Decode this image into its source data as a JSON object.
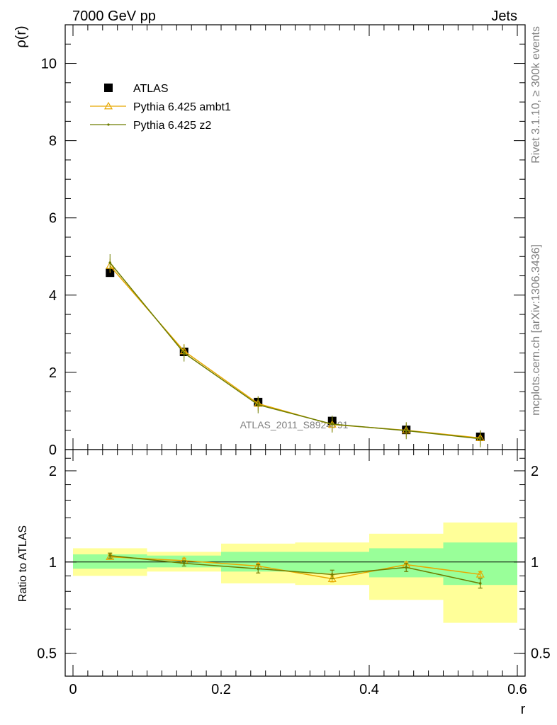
{
  "header": {
    "left": "7000 GeV pp",
    "right": "Jets"
  },
  "side": {
    "rivet": "Rivet 3.1.10, ≥ 300k events",
    "mcplots": "mcplots.cern.ch [arXiv:1306.3436]"
  },
  "watermark": "ATLAS_2011_S8924791",
  "colors": {
    "ambt1": "#e8a800",
    "z2": "#6e7d00",
    "band_inner": "#99ff99",
    "band_outer": "#ffff99"
  },
  "chart_data": [
    {
      "type": "scatter",
      "panel": "main",
      "ylabel": "ρ(r)",
      "ylim": [
        0,
        11
      ],
      "yticks": [
        0,
        2,
        4,
        6,
        8,
        10
      ],
      "xlim": [
        0,
        0.6
      ],
      "legend_placement": "top-left",
      "series": [
        {
          "name": "ATLAS",
          "x": [
            0.05,
            0.15,
            0.25,
            0.35,
            0.45,
            0.55
          ],
          "y": [
            4.58,
            2.53,
            1.23,
            0.74,
            0.51,
            0.33
          ],
          "marker": "square"
        },
        {
          "name": "Pythia 6.425 ambt1",
          "x": [
            0.05,
            0.15,
            0.25,
            0.35,
            0.45,
            0.55
          ],
          "y": [
            4.76,
            2.55,
            1.19,
            0.65,
            0.5,
            0.3
          ],
          "marker": "triangle"
        },
        {
          "name": "Pythia 6.425 z2",
          "x": [
            0.05,
            0.15,
            0.25,
            0.35,
            0.45,
            0.55
          ],
          "y": [
            4.84,
            2.5,
            1.16,
            0.66,
            0.49,
            0.28
          ],
          "marker": "dot"
        }
      ]
    },
    {
      "type": "line",
      "panel": "ratio",
      "ylabel": "Ratio to ATLAS",
      "xlabel": "r",
      "xlim": [
        0,
        0.6
      ],
      "xticks": [
        0,
        0.2,
        0.4,
        0.6
      ],
      "xtick_labels": [
        "0",
        "0.2",
        "0.4",
        "0.6"
      ],
      "ylim": [
        0.42,
        2.35
      ],
      "yscale": "log",
      "yticks": [
        0.5,
        1,
        2
      ],
      "ytick_labels": [
        "0.5",
        "1",
        "2"
      ],
      "bins": [
        [
          0,
          0.1
        ],
        [
          0.1,
          0.2
        ],
        [
          0.2,
          0.3
        ],
        [
          0.3,
          0.4
        ],
        [
          0.4,
          0.5
        ],
        [
          0.5,
          0.6
        ]
      ],
      "band_inner": [
        [
          0.95,
          1.06
        ],
        [
          0.96,
          1.05
        ],
        [
          0.93,
          1.08
        ],
        [
          0.92,
          1.08
        ],
        [
          0.89,
          1.11
        ],
        [
          0.84,
          1.16
        ]
      ],
      "band_outer": [
        [
          0.9,
          1.11
        ],
        [
          0.93,
          1.08
        ],
        [
          0.85,
          1.15
        ],
        [
          0.84,
          1.16
        ],
        [
          0.75,
          1.24
        ],
        [
          0.63,
          1.35
        ]
      ],
      "series": [
        {
          "name": "Pythia 6.425 ambt1",
          "x": [
            0.05,
            0.15,
            0.25,
            0.35,
            0.45,
            0.55
          ],
          "y": [
            1.04,
            1.01,
            0.97,
            0.88,
            0.98,
            0.91
          ],
          "err": [
            0.02,
            0.02,
            0.02,
            0.02,
            0.02,
            0.02
          ]
        },
        {
          "name": "Pythia 6.425 z2",
          "x": [
            0.05,
            0.15,
            0.25,
            0.35,
            0.45,
            0.55
          ],
          "y": [
            1.05,
            0.99,
            0.95,
            0.91,
            0.96,
            0.85
          ],
          "err": [
            0.02,
            0.02,
            0.03,
            0.03,
            0.03,
            0.03
          ]
        }
      ]
    }
  ]
}
